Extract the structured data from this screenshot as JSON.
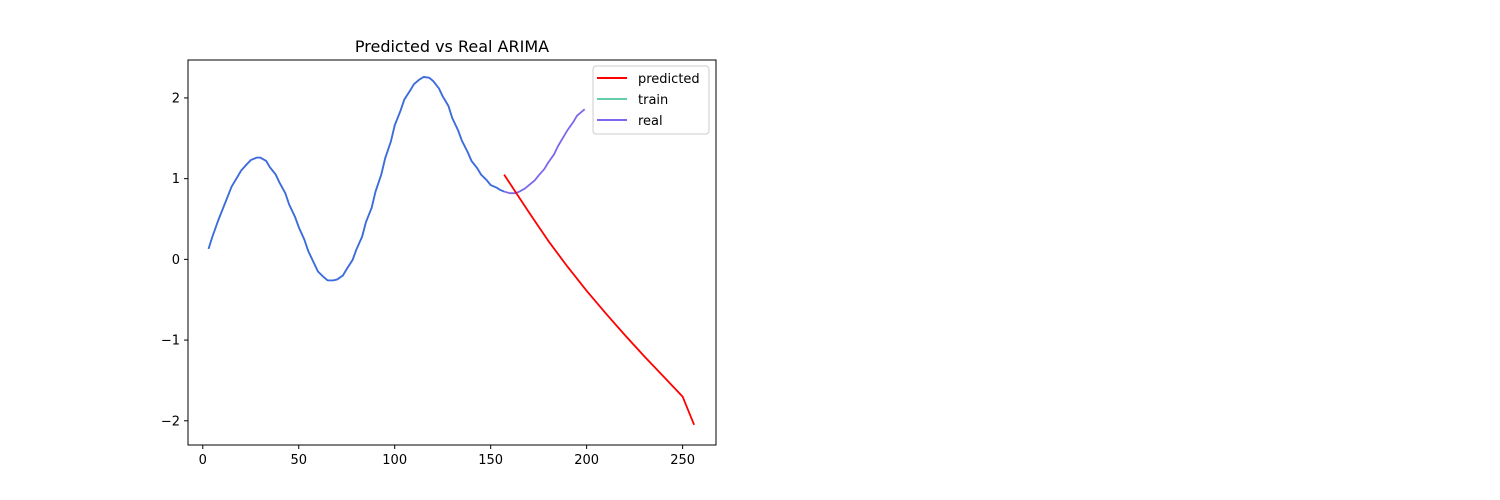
{
  "chart_data": {
    "type": "line",
    "title": "Predicted vs Real ARIMA",
    "xlabel": "",
    "ylabel": "",
    "xlim": [
      -7.7,
      267.4
    ],
    "ylim": [
      -2.3,
      2.47
    ],
    "xticks": [
      0,
      50,
      100,
      150,
      200,
      250
    ],
    "yticks": [
      -2,
      -1,
      0,
      1,
      2
    ],
    "grid": false,
    "legend_position": "top-right",
    "colors": {
      "predicted": "#ff0000",
      "train": "#66cdaa",
      "real": "#7b68ee",
      "overlap": "#4169e1"
    },
    "series": [
      {
        "name": "predicted",
        "x": [
          157,
          170,
          180,
          190,
          200,
          210,
          220,
          230,
          240,
          250,
          256
        ],
        "y": [
          1.05,
          0.58,
          0.23,
          -0.09,
          -0.39,
          -0.67,
          -0.94,
          -1.2,
          -1.45,
          -1.7,
          -2.05
        ]
      },
      {
        "name": "train",
        "x": [
          3,
          5,
          8,
          10,
          13,
          15,
          18,
          20,
          23,
          25,
          28,
          30,
          33,
          35,
          38,
          40,
          43,
          45,
          48,
          50,
          53,
          55,
          58,
          60,
          63,
          65,
          68,
          70,
          73,
          75,
          78,
          80,
          83,
          85,
          88,
          90,
          93,
          95,
          98,
          100,
          103,
          105,
          108,
          110,
          113,
          115,
          118,
          120,
          123,
          125,
          128,
          130,
          133,
          135,
          138,
          140,
          143,
          145,
          148,
          150,
          153,
          155,
          157,
          159
        ],
        "y": [
          0.13,
          0.28,
          0.48,
          0.6,
          0.78,
          0.9,
          1.02,
          1.1,
          1.18,
          1.23,
          1.26,
          1.26,
          1.22,
          1.14,
          1.05,
          0.95,
          0.82,
          0.68,
          0.53,
          0.4,
          0.24,
          0.1,
          -0.05,
          -0.15,
          -0.22,
          -0.26,
          -0.26,
          -0.25,
          -0.2,
          -0.12,
          -0.01,
          0.12,
          0.28,
          0.46,
          0.64,
          0.84,
          1.05,
          1.25,
          1.46,
          1.66,
          1.84,
          1.98,
          2.09,
          2.17,
          2.23,
          2.26,
          2.25,
          2.21,
          2.12,
          2.02,
          1.9,
          1.75,
          1.6,
          1.47,
          1.33,
          1.22,
          1.13,
          1.05,
          0.98,
          0.92,
          0.89,
          0.86,
          0.84,
          0.82
        ],
        "draw_until_x": 157
      },
      {
        "name": "real",
        "x": [
          3,
          5,
          8,
          10,
          13,
          15,
          18,
          20,
          23,
          25,
          28,
          30,
          33,
          35,
          38,
          40,
          43,
          45,
          48,
          50,
          53,
          55,
          58,
          60,
          63,
          65,
          68,
          70,
          73,
          75,
          78,
          80,
          83,
          85,
          88,
          90,
          93,
          95,
          98,
          100,
          103,
          105,
          108,
          110,
          113,
          115,
          118,
          120,
          123,
          125,
          128,
          130,
          133,
          135,
          138,
          140,
          143,
          145,
          148,
          150,
          153,
          155,
          157,
          160,
          163,
          165,
          168,
          170,
          173,
          175,
          178,
          180,
          183,
          185,
          188,
          190,
          193,
          195,
          198,
          199
        ],
        "y": [
          0.13,
          0.28,
          0.48,
          0.6,
          0.78,
          0.9,
          1.02,
          1.1,
          1.18,
          1.23,
          1.26,
          1.26,
          1.22,
          1.14,
          1.05,
          0.95,
          0.82,
          0.68,
          0.53,
          0.4,
          0.24,
          0.1,
          -0.05,
          -0.15,
          -0.22,
          -0.26,
          -0.26,
          -0.25,
          -0.2,
          -0.12,
          -0.01,
          0.12,
          0.28,
          0.46,
          0.64,
          0.84,
          1.05,
          1.25,
          1.46,
          1.66,
          1.84,
          1.98,
          2.09,
          2.17,
          2.23,
          2.26,
          2.25,
          2.21,
          2.12,
          2.02,
          1.9,
          1.75,
          1.6,
          1.47,
          1.33,
          1.22,
          1.13,
          1.05,
          0.98,
          0.92,
          0.89,
          0.86,
          0.84,
          0.82,
          0.82,
          0.84,
          0.88,
          0.92,
          0.98,
          1.04,
          1.12,
          1.2,
          1.3,
          1.4,
          1.52,
          1.6,
          1.7,
          1.78,
          1.84,
          1.86
        ]
      }
    ]
  }
}
